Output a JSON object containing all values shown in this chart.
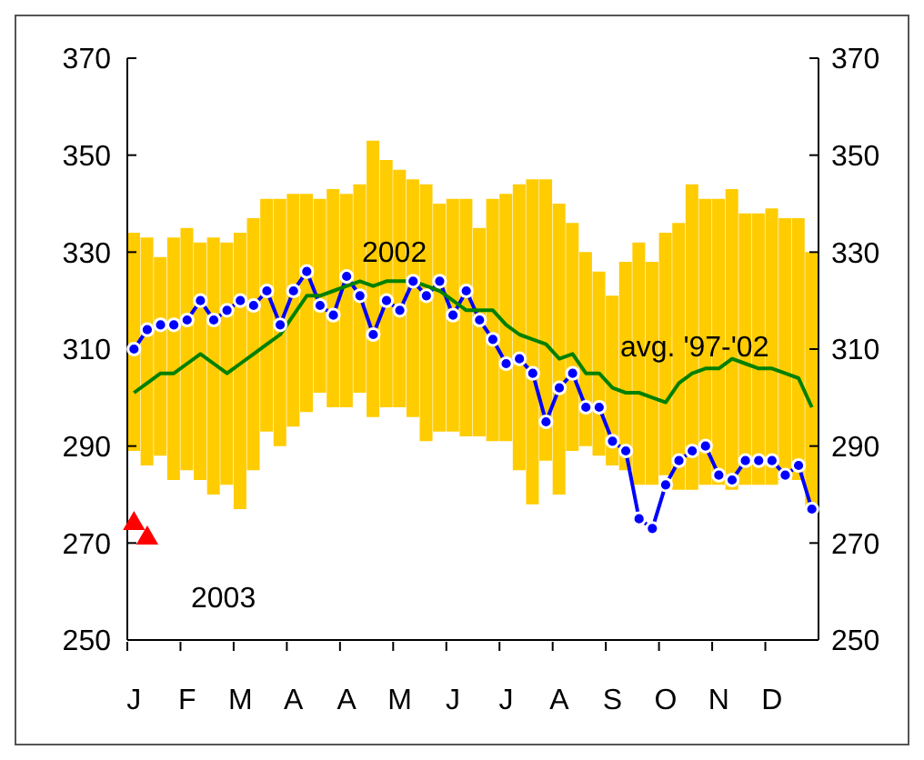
{
  "chart_data": {
    "type": "bar",
    "categories": [
      "J",
      null,
      null,
      null,
      "F",
      null,
      null,
      null,
      "M",
      null,
      null,
      null,
      "A",
      null,
      null,
      null,
      "A",
      null,
      null,
      null,
      "M",
      null,
      null,
      null,
      "J",
      null,
      null,
      null,
      "J",
      null,
      null,
      null,
      "A",
      null,
      null,
      null,
      "S",
      null,
      null,
      null,
      "O",
      null,
      null,
      null,
      "N",
      null,
      null,
      null,
      "D",
      null,
      null,
      null
    ],
    "series": [
      {
        "color": "#ffcc00",
        "base": [
          289,
          286,
          288,
          283,
          285,
          283,
          280,
          282,
          277,
          285,
          293,
          290,
          294,
          297,
          301,
          298,
          298,
          301,
          296,
          298,
          298,
          296,
          291,
          293,
          293,
          292,
          292,
          291,
          291,
          285,
          278,
          287,
          280,
          289,
          290,
          288,
          286,
          285,
          282,
          282,
          284,
          281,
          281,
          282,
          282,
          281,
          282,
          282,
          282,
          283,
          283,
          277
        ],
        "values": [
          45,
          47,
          41,
          50,
          50,
          49,
          53,
          50,
          57,
          52,
          48,
          51,
          48,
          45,
          40,
          45,
          44,
          43,
          57,
          51,
          49,
          49,
          53,
          47,
          48,
          49,
          43,
          50,
          51,
          59,
          67,
          58,
          60,
          47,
          40,
          38,
          35,
          43,
          50,
          46,
          50,
          55,
          63,
          59,
          59,
          62,
          56,
          56,
          57,
          54,
          54,
          53
        ]
      },
      {
        "type": "line",
        "name": "2002",
        "color": "#0000ff",
        "marker": "circle",
        "values": [
          310,
          314,
          315,
          315,
          316,
          320,
          316,
          318,
          320,
          319,
          322,
          315,
          322,
          326,
          319,
          317,
          325,
          321,
          313,
          320,
          318,
          324,
          321,
          324,
          317,
          322,
          316,
          312,
          307,
          308,
          305,
          295,
          302,
          305,
          298,
          298,
          291,
          289,
          275,
          273,
          282,
          287,
          289,
          290,
          284,
          283,
          287,
          287,
          287,
          284,
          286,
          277
        ]
      },
      {
        "type": "line",
        "name": "avg. '97-'02",
        "color": "#008000",
        "marker": "none",
        "values": [
          301,
          303,
          305,
          305,
          307,
          309,
          307,
          305,
          307,
          309,
          311,
          313,
          317,
          321,
          321,
          322,
          323,
          324,
          323,
          324,
          324,
          324,
          323,
          322,
          320,
          318,
          318,
          318,
          315,
          313,
          312,
          311,
          308,
          309,
          305,
          305,
          302,
          301,
          301,
          300,
          299,
          303,
          305,
          306,
          306,
          308,
          307,
          306,
          306,
          305,
          304,
          298
        ]
      },
      {
        "type": "scatter",
        "name": "2003",
        "color": "#ff0000",
        "marker": "triangle",
        "values": [
          274,
          271,
          null,
          null,
          null,
          null,
          null,
          null,
          null,
          null,
          null,
          null,
          null,
          null,
          null,
          null,
          null,
          null,
          null,
          null,
          null,
          null,
          null,
          null,
          null,
          null,
          null,
          null,
          null,
          null,
          null,
          null,
          null,
          null,
          null,
          null,
          null,
          null,
          null,
          null,
          null,
          null,
          null,
          null,
          null,
          null,
          null,
          null,
          null,
          null,
          null,
          null
        ]
      }
    ],
    "ylim": [
      250,
      370
    ],
    "yticks": [
      250,
      270,
      290,
      310,
      330,
      350,
      370
    ],
    "y2lim": [
      250,
      370
    ],
    "y2ticks": [
      250,
      270,
      290,
      310,
      330,
      350,
      370
    ]
  }
}
